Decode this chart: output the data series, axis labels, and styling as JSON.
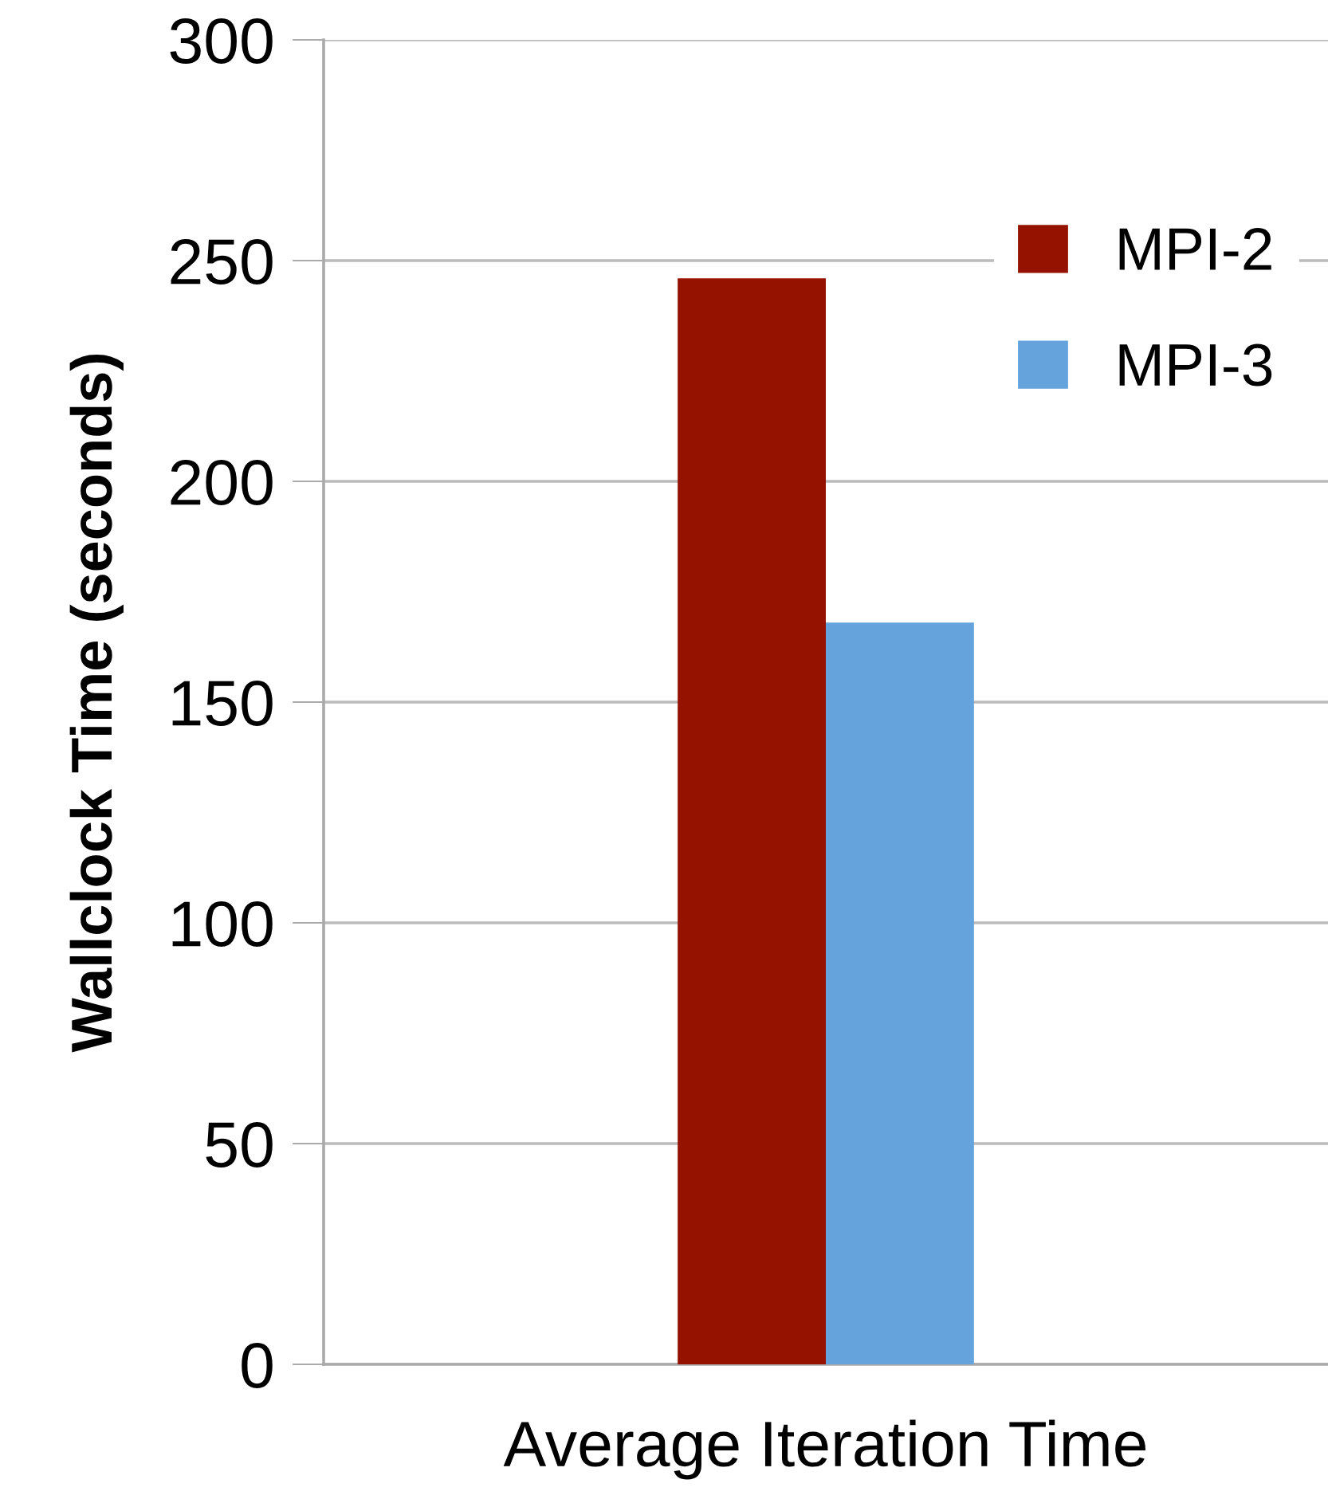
{
  "chart_data": {
    "type": "bar",
    "ylabel": "Wallclock Time (seconds)",
    "categories": [
      "Average Iteration Time"
    ],
    "series": [
      {
        "name": "MPI-2",
        "color": "#951200",
        "values": [
          246
        ]
      },
      {
        "name": "MPI-3",
        "color": "#65a3dd",
        "values": [
          168
        ]
      }
    ],
    "ylim": [
      0,
      300
    ],
    "yticks": [
      0,
      50,
      100,
      150,
      200,
      250,
      300
    ],
    "grid": "y",
    "legend": "top right"
  }
}
